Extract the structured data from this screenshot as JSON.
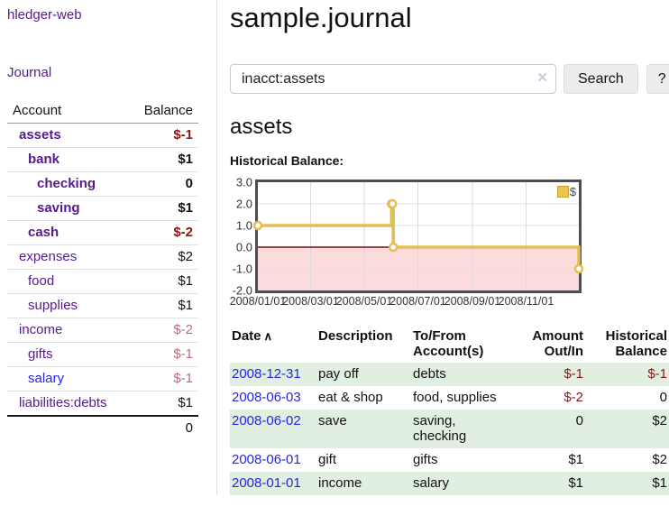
{
  "brand": {
    "label": "hledger-web"
  },
  "sidebar": {
    "journal_link": "Journal",
    "accounts": {
      "headers": [
        "Account",
        "Balance"
      ],
      "rows": [
        {
          "name": "assets",
          "balance": "$-1",
          "depth": 1,
          "bold": true,
          "balance_color": "neg"
        },
        {
          "name": "bank",
          "balance": "$1",
          "depth": 2,
          "bold": true,
          "balance_color": "pos"
        },
        {
          "name": "checking",
          "balance": "0",
          "depth": 3,
          "bold": true,
          "balance_color": "pos"
        },
        {
          "name": "saving",
          "balance": "$1",
          "depth": 3,
          "bold": true,
          "balance_color": "pos"
        },
        {
          "name": "cash",
          "balance": "$-2",
          "depth": 2,
          "bold": true,
          "balance_color": "neg"
        },
        {
          "name": "expenses",
          "balance": "$2",
          "depth": 1,
          "bold": false,
          "balance_color": "pos"
        },
        {
          "name": "food",
          "balance": "$1",
          "depth": 2,
          "bold": false,
          "balance_color": "pos"
        },
        {
          "name": "supplies",
          "balance": "$1",
          "depth": 2,
          "bold": false,
          "balance_color": "pos"
        },
        {
          "name": "income",
          "balance": "$-2",
          "depth": 1,
          "bold": false,
          "balance_color": "soft"
        },
        {
          "name": "gifts",
          "balance": "$-1",
          "depth": 2,
          "bold": false,
          "balance_color": "soft"
        },
        {
          "name": "salary",
          "balance": "$-1",
          "depth": 2,
          "bold": false,
          "balance_color": "soft",
          "link_color": "blue"
        },
        {
          "name": "liabilities:debts",
          "balance": "$1",
          "depth": 1,
          "bold": false,
          "balance_color": "pos"
        }
      ],
      "total": "0"
    }
  },
  "main": {
    "title": "sample.journal",
    "search": {
      "value": "inacct:assets",
      "clear_icon": "✕",
      "button_label": "Search",
      "help_label": "?"
    },
    "account_title": "assets",
    "chart_label": "Historical Balance:",
    "register": {
      "headers": [
        "Date",
        "Description",
        "To/From Account(s)",
        "Amount Out/In",
        "Historical Balance"
      ],
      "sort_icon": "∧",
      "rows": [
        {
          "date": "2008-12-31",
          "description": "pay off",
          "accounts": "debts",
          "amount": "$-1",
          "amount_neg": true,
          "balance": "$-1",
          "balance_neg": true,
          "shaded": true
        },
        {
          "date": "2008-06-03",
          "description": "eat & shop",
          "accounts": "food, supplies",
          "amount": "$-2",
          "amount_neg": true,
          "balance": "0",
          "balance_neg": false,
          "shaded": false
        },
        {
          "date": "2008-06-02",
          "description": "save",
          "accounts": "saving, checking",
          "amount": "0",
          "amount_neg": false,
          "balance": "$2",
          "balance_neg": false,
          "shaded": true
        },
        {
          "date": "2008-06-01",
          "description": "gift",
          "accounts": "gifts",
          "amount": "$1",
          "amount_neg": false,
          "balance": "$2",
          "balance_neg": false,
          "shaded": false
        },
        {
          "date": "2008-01-01",
          "description": "income",
          "accounts": "salary",
          "amount": "$1",
          "amount_neg": false,
          "balance": "$1",
          "balance_neg": false,
          "shaded": true
        }
      ]
    }
  },
  "chart_data": {
    "type": "line",
    "title": "Historical Balance:",
    "step": true,
    "xrange": [
      "2008-01-01",
      "2008-12-31"
    ],
    "ylim": [
      -2,
      3
    ],
    "yticks": [
      3.0,
      2.0,
      1.0,
      0.0,
      -1.0,
      -2.0
    ],
    "xticks": [
      "2008/01/01",
      "2008/03/01",
      "2008/05/01",
      "2008/07/01",
      "2008/09/01",
      "2008/11/01"
    ],
    "series": [
      {
        "name": "$",
        "points": [
          [
            "2008-01-01",
            1
          ],
          [
            "2008-06-01",
            2
          ],
          [
            "2008-06-02",
            2
          ],
          [
            "2008-06-03",
            0
          ],
          [
            "2008-12-31",
            -1
          ]
        ]
      }
    ],
    "legend": {
      "position": "top-right",
      "entries": [
        "$"
      ]
    },
    "colors": {
      "line": "#e2bf53",
      "marker_fill": "#ffffff",
      "negative_region": "#fbdbdb",
      "zero_line": "#7a0c0c",
      "grid": "#e0e0e0"
    }
  }
}
